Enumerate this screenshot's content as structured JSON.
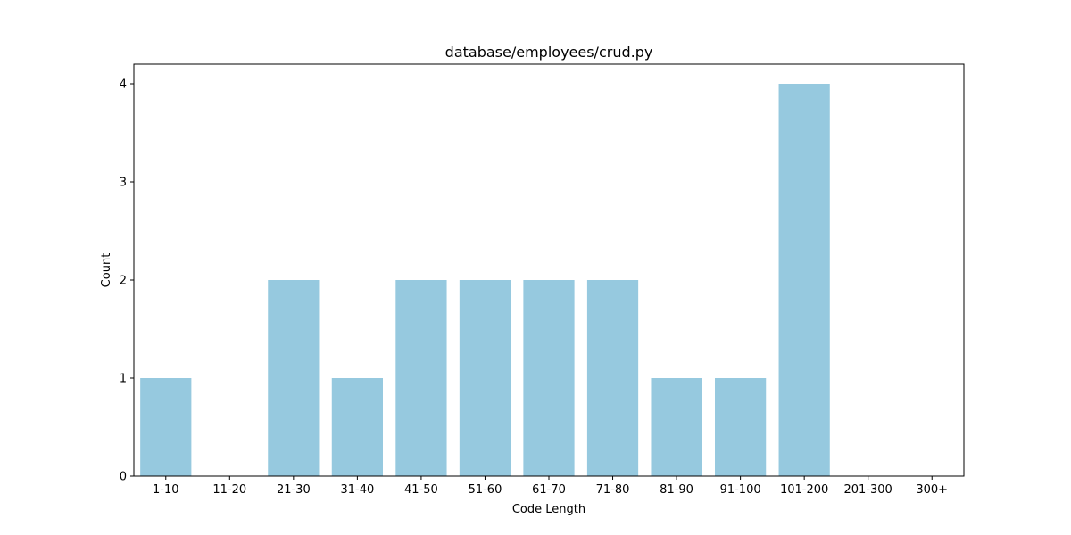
{
  "chart_data": {
    "type": "bar",
    "title": "database/employees/crud.py",
    "xlabel": "Code Length",
    "ylabel": "Count",
    "categories": [
      "1-10",
      "11-20",
      "21-30",
      "31-40",
      "41-50",
      "51-60",
      "61-70",
      "71-80",
      "81-90",
      "91-100",
      "101-200",
      "201-300",
      "300+"
    ],
    "values": [
      1,
      0,
      2,
      1,
      2,
      2,
      2,
      2,
      1,
      1,
      4,
      0,
      0
    ],
    "ylim": [
      0,
      4.2
    ],
    "yticks": [
      0,
      1,
      2,
      3,
      4
    ],
    "grid": false,
    "bar_color": "#96c9df"
  }
}
